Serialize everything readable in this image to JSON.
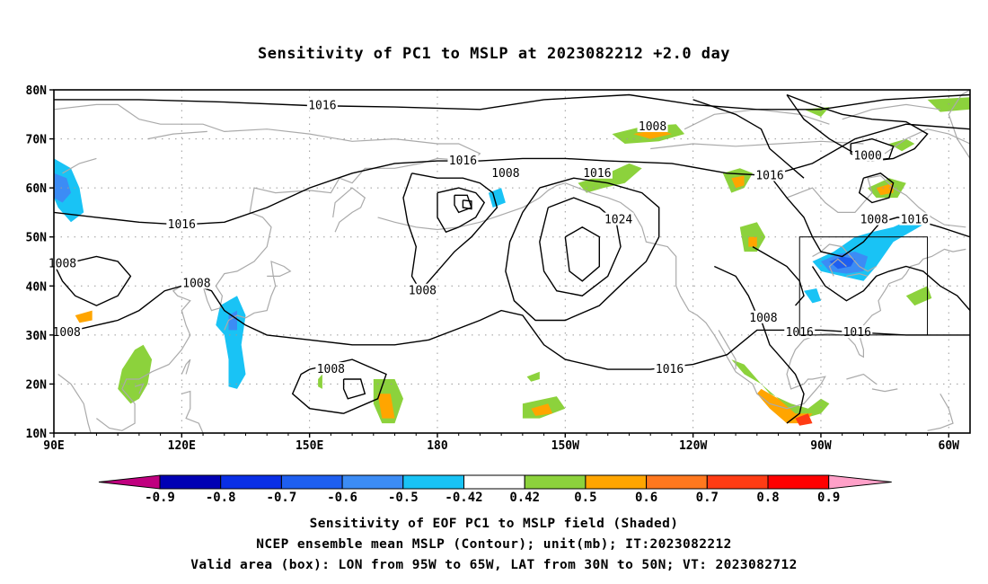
{
  "title": "Sensitivity of PC1 to MSLP at 2023082212 +2.0 day",
  "map": {
    "lon_range": [
      "90E",
      "55W"
    ],
    "lat_range": [
      "10N",
      "80N"
    ],
    "lon_ticks": [
      "90E",
      "120E",
      "150E",
      "180",
      "150W",
      "120W",
      "90W",
      "60W"
    ],
    "lat_ticks": [
      "10N",
      "20N",
      "30N",
      "40N",
      "50N",
      "60N",
      "70N",
      "80N"
    ],
    "contour_interval_mb": 4,
    "contour_labels": [
      {
        "value": "1016",
        "lon": 153,
        "lat": 76.8
      },
      {
        "value": "1016",
        "lon": 120,
        "lat": 52.5
      },
      {
        "value": "1008",
        "lon": 92,
        "lat": 44.5
      },
      {
        "value": "1008",
        "lon": 123.5,
        "lat": 40.5
      },
      {
        "value": "1008",
        "lon": 93,
        "lat": 30.5
      },
      {
        "value": "1008",
        "lon": 155,
        "lat": 23
      },
      {
        "value": "1016",
        "lon": 186,
        "lat": 65.5
      },
      {
        "value": "1008",
        "lon": 196,
        "lat": 63
      },
      {
        "value": "1008",
        "lon": 176.5,
        "lat": 39
      },
      {
        "value": "1016",
        "lon": 217.5,
        "lat": 63
      },
      {
        "value": "1024",
        "lon": 222.5,
        "lat": 53.5
      },
      {
        "value": "1008",
        "lon": 230.5,
        "lat": 72.5
      },
      {
        "value": "1016",
        "lon": 234.5,
        "lat": 23
      },
      {
        "value": "1016",
        "lon": 258,
        "lat": 62.5
      },
      {
        "value": "1008",
        "lon": 256.5,
        "lat": 33.5
      },
      {
        "value": "1016",
        "lon": 265,
        "lat": 30.5
      },
      {
        "value": "1000",
        "lon": 281,
        "lat": 66.5
      },
      {
        "value": "1008",
        "lon": 282.5,
        "lat": 53.5
      },
      {
        "value": "1016",
        "lon": 292,
        "lat": 53.5
      },
      {
        "value": "1016",
        "lon": 278.5,
        "lat": 30.5
      }
    ],
    "valid_box": {
      "lon_w": 265,
      "lon_e": 295,
      "lat_s": 30,
      "lat_n": 50
    }
  },
  "colorbar": {
    "labels": [
      "-0.9",
      "-0.8",
      "-0.7",
      "-0.6",
      "-0.5",
      "-0.42",
      "0.42",
      "0.5",
      "0.6",
      "0.7",
      "0.8",
      "0.9"
    ],
    "colors": [
      "#c0007f",
      "#0000b4",
      "#0a2fe6",
      "#1e5ff0",
      "#3c8cf5",
      "#19c3f5",
      "#ffffff",
      "#8cd23c",
      "#ffa500",
      "#ff781e",
      "#ff3c14",
      "#ff0000",
      "#ffa0c8"
    ]
  },
  "captions": {
    "line1": "Sensitivity of EOF PC1 to MSLP field (Shaded)",
    "line2": "NCEP ensemble mean MSLP (Contour); unit(mb); IT:2023082212",
    "line3": "Valid area (box): LON from 95W to 65W, LAT from 30N to 50N; VT: 2023082712"
  }
}
